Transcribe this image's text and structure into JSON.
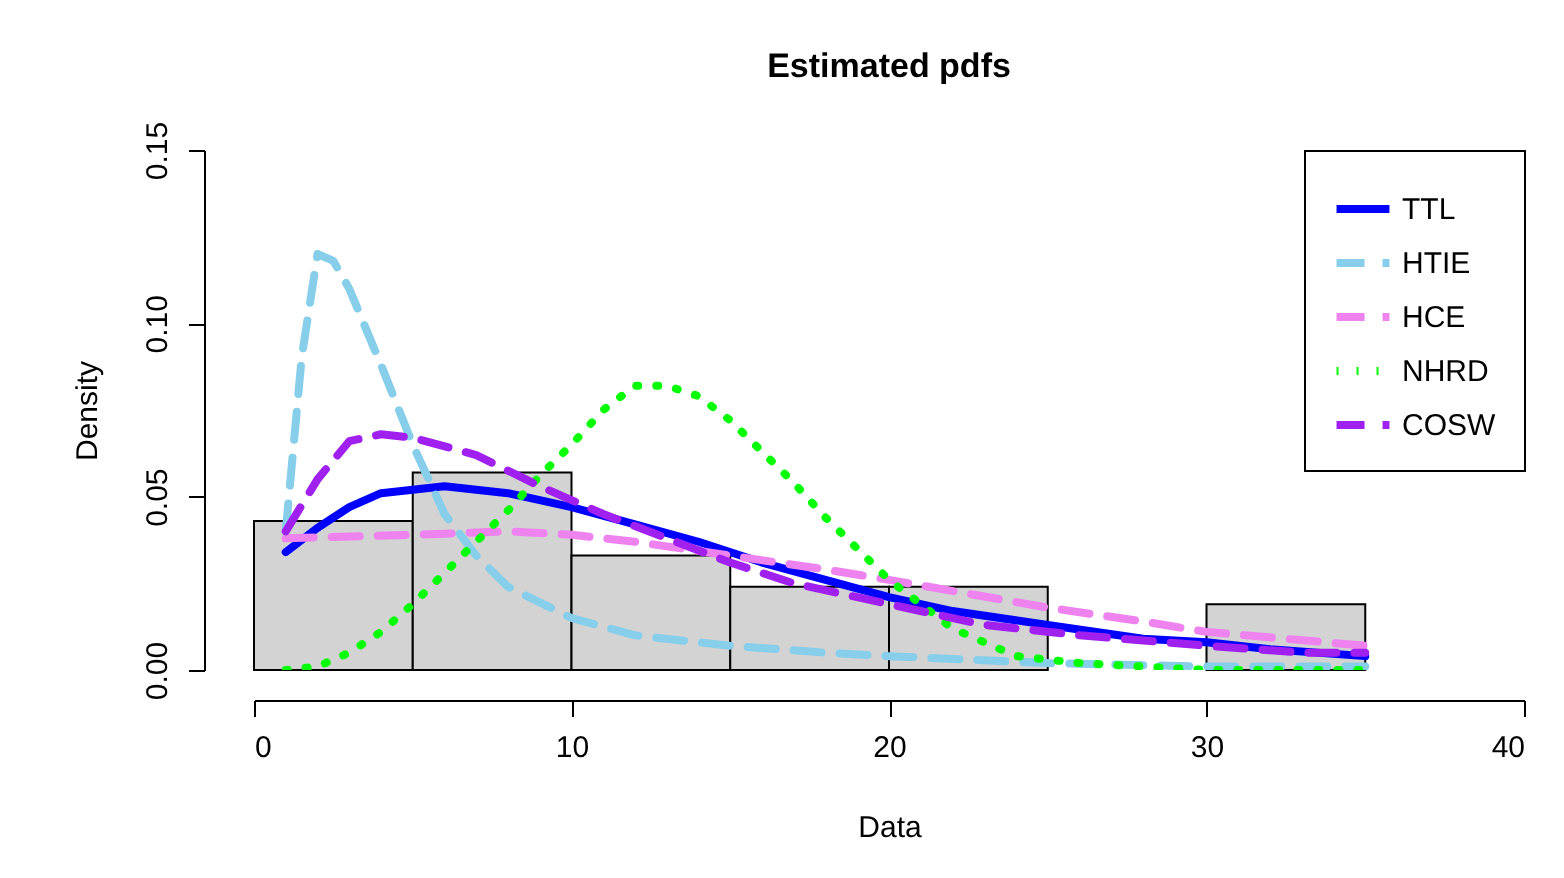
{
  "chart_data": {
    "type": "histogram",
    "title": "Estimated pdfs",
    "xlabel": "Data",
    "ylabel": "Density",
    "bins": [
      0,
      5,
      10,
      15,
      20,
      25,
      30,
      35
    ],
    "values": [
      0.043,
      0.057,
      0.033,
      0.024,
      0.024,
      0,
      0.019
    ],
    "color": "#d3d3d3",
    "xlim": [
      0,
      40
    ],
    "xticks": [
      0,
      10,
      20,
      30,
      40
    ],
    "ylim": [
      0,
      0.15
    ],
    "yticks": [
      {
        "value": 0,
        "label": "0.00"
      },
      {
        "value": 0.05,
        "label": "0.05"
      },
      {
        "value": 0.1,
        "label": "0.10"
      },
      {
        "value": 0.15,
        "label": "0.15"
      }
    ],
    "grid": false,
    "legend": "top right",
    "series": [
      {
        "name": "TTL",
        "type": "line",
        "color": "#0000ff",
        "line_style": "solid",
        "x": [
          1,
          2,
          3,
          4,
          5,
          6,
          8,
          10,
          12,
          14,
          16,
          18,
          20,
          22,
          25,
          28,
          30,
          32,
          35
        ],
        "values": [
          0.034,
          0.041,
          0.047,
          0.051,
          0.052,
          0.053,
          0.051,
          0.047,
          0.042,
          0.037,
          0.031,
          0.026,
          0.021,
          0.017,
          0.013,
          0.009,
          0.008,
          0.006,
          0.004
        ]
      },
      {
        "name": "HTIE",
        "type": "line",
        "color": "#87ceeb",
        "line_style": "dashed",
        "x": [
          1,
          1.5,
          2,
          2.5,
          3,
          4,
          5,
          6,
          7,
          8,
          10,
          12,
          15,
          18,
          20,
          25,
          30,
          35
        ],
        "values": [
          0.04,
          0.09,
          0.12,
          0.118,
          0.11,
          0.088,
          0.065,
          0.045,
          0.033,
          0.024,
          0.015,
          0.01,
          0.007,
          0.005,
          0.004,
          0.002,
          0.001,
          0.001
        ]
      },
      {
        "name": "HCE",
        "type": "line",
        "color": "#ee82ee",
        "line_style": "dashed",
        "x": [
          1,
          5,
          8,
          10,
          12,
          15,
          18,
          20,
          25,
          28,
          30,
          35
        ],
        "values": [
          0.038,
          0.039,
          0.04,
          0.039,
          0.037,
          0.033,
          0.029,
          0.026,
          0.018,
          0.014,
          0.011,
          0.007
        ]
      },
      {
        "name": "NHRD",
        "type": "line",
        "color": "#00ff00",
        "line_style": "dotted",
        "x": [
          1,
          2,
          3,
          4,
          5,
          6,
          7,
          8,
          9,
          10,
          11,
          12,
          13,
          14,
          15,
          16,
          17,
          18,
          19,
          20,
          21,
          22,
          23,
          24,
          26,
          28,
          30,
          35
        ],
        "values": [
          0,
          0.001,
          0.005,
          0.011,
          0.019,
          0.028,
          0.037,
          0.046,
          0.056,
          0.065,
          0.075,
          0.082,
          0.082,
          0.079,
          0.072,
          0.063,
          0.054,
          0.044,
          0.035,
          0.026,
          0.019,
          0.012,
          0.008,
          0.004,
          0.002,
          0.001,
          0,
          0
        ]
      },
      {
        "name": "COSW",
        "type": "line",
        "color": "#a020f0",
        "line_style": "dashed",
        "x": [
          1,
          2,
          3,
          4,
          5,
          7,
          9,
          11,
          13,
          15,
          17,
          20,
          23,
          26,
          30,
          33,
          35
        ],
        "values": [
          0.04,
          0.055,
          0.066,
          0.068,
          0.067,
          0.062,
          0.053,
          0.045,
          0.038,
          0.031,
          0.025,
          0.019,
          0.013,
          0.01,
          0.007,
          0.005,
          0.005
        ]
      }
    ]
  }
}
